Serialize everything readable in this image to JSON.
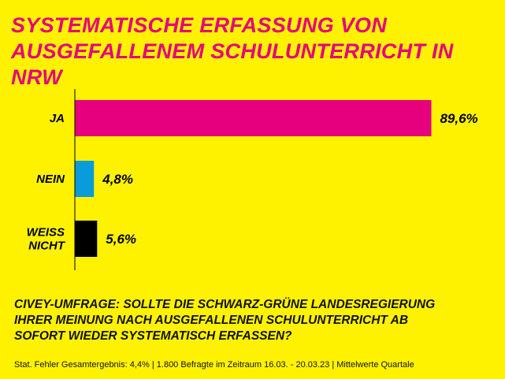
{
  "title_lines": [
    "SYSTEMATISCHE ERFASSUNG VON",
    "AUSGEFALLENEM SCHULUNTERRICHT IN NRW"
  ],
  "question_lines": [
    "CIVEY-UMFRAGE: SOLLTE DIE SCHWARZ-GRÜNE LANDESREGIERUNG",
    "IHRER MEINUNG NACH AUSGEFALLENEN SCHULUNTERRICHT AB",
    "SOFORT WIEDER SYSTEMATISCH ERFASSEN?"
  ],
  "footer": "Stat. Fehler Gesamtergebnis: 4,4% | 1.800 Befragte im Zeitraum 16.03. - 20.03.23 | Mittelwerte Quartale",
  "colors": {
    "background": "#FFF200",
    "accent": "#E6007E"
  },
  "chart_data": {
    "type": "bar",
    "orientation": "horizontal",
    "title": "SYSTEMATISCHE ERFASSUNG VON AUSGEFALLENEM SCHULUNTERRICHT IN NRW",
    "categories": [
      [
        "JA"
      ],
      [
        "NEIN"
      ],
      [
        "WEISS",
        "NICHT"
      ]
    ],
    "values": [
      89.6,
      4.8,
      5.6
    ],
    "value_labels": [
      "89,6%",
      "4,8%",
      "5,6%"
    ],
    "colors": [
      "#E6007E",
      "#0A9BDB",
      "#000000"
    ],
    "xlim": [
      0,
      100
    ],
    "grid": false,
    "legend": "none"
  }
}
